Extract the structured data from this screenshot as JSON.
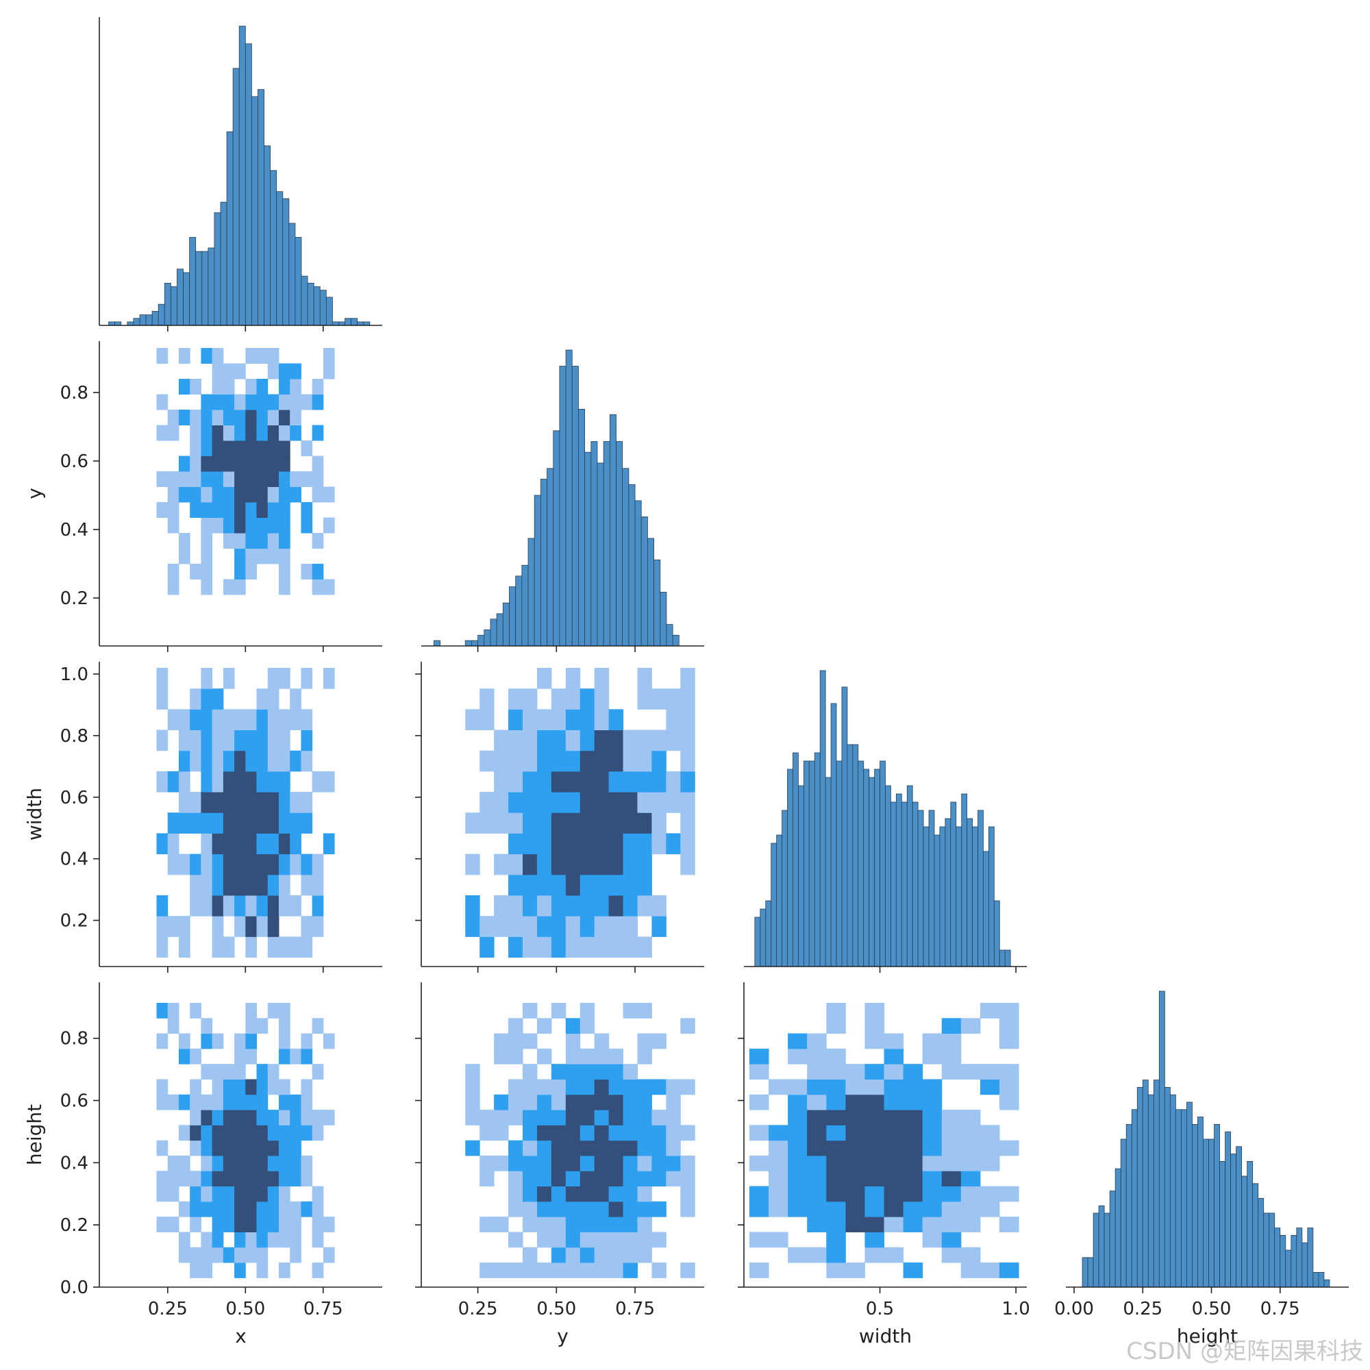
{
  "chart_data": {
    "type": "pairplot",
    "variables": [
      "x",
      "y",
      "width",
      "height"
    ],
    "colors": {
      "bar_fill": "#4a8fc7",
      "bar_edge": "#2c3e50",
      "heat_low": "#9ec5f2",
      "heat_mid": "#2fa0f0",
      "heat_high": "#34507a"
    },
    "panels": [
      {
        "id": "hist-x",
        "row": 0,
        "col": 0,
        "type": "histogram",
        "variable": "x",
        "xlim": [
          0.03,
          0.94
        ],
        "bins": [
          0.07,
          0.09,
          0.11,
          0.13,
          0.15,
          0.17,
          0.19,
          0.21,
          0.23,
          0.25,
          0.27,
          0.29,
          0.31,
          0.33,
          0.35,
          0.37,
          0.39,
          0.41,
          0.43,
          0.45,
          0.47,
          0.49,
          0.51,
          0.53,
          0.55,
          0.57,
          0.59,
          0.61,
          0.63,
          0.65,
          0.67,
          0.69,
          0.71,
          0.73,
          0.75,
          0.77,
          0.79,
          0.81,
          0.83,
          0.85,
          0.87,
          0.89,
          0.91
        ],
        "counts": [
          1,
          1,
          0,
          1,
          2,
          3,
          3,
          4,
          6,
          12,
          11,
          16,
          15,
          25,
          21,
          21,
          22,
          32,
          35,
          55,
          73,
          85,
          80,
          65,
          67,
          51,
          44,
          38,
          36,
          29,
          25,
          14,
          12,
          11,
          10,
          8,
          1,
          1,
          2,
          2,
          1,
          1,
          0
        ]
      },
      {
        "id": "hist-y",
        "row": 1,
        "col": 1,
        "type": "histogram",
        "variable": "y",
        "xlim": [
          0.07,
          0.97
        ],
        "bins": [
          0.12,
          0.14,
          0.16,
          0.18,
          0.2,
          0.22,
          0.24,
          0.26,
          0.28,
          0.3,
          0.32,
          0.34,
          0.36,
          0.38,
          0.4,
          0.42,
          0.44,
          0.46,
          0.48,
          0.5,
          0.52,
          0.54,
          0.56,
          0.58,
          0.6,
          0.62,
          0.64,
          0.66,
          0.68,
          0.7,
          0.72,
          0.74,
          0.76,
          0.78,
          0.8,
          0.82,
          0.84,
          0.86,
          0.88,
          0.9
        ],
        "counts": [
          1,
          0,
          0,
          0,
          0,
          1,
          1,
          2,
          3,
          5,
          6,
          8,
          11,
          13,
          15,
          20,
          28,
          31,
          33,
          40,
          52,
          55,
          52,
          44,
          36,
          38,
          34,
          38,
          43,
          38,
          33,
          30,
          27,
          24,
          20,
          16,
          10,
          4,
          2,
          0
        ]
      },
      {
        "id": "hist-width",
        "row": 2,
        "col": 2,
        "type": "histogram",
        "variable": "width",
        "xlim": [
          0.0,
          1.04
        ],
        "bins": [
          0.05,
          0.07,
          0.09,
          0.11,
          0.13,
          0.15,
          0.17,
          0.19,
          0.21,
          0.23,
          0.25,
          0.27,
          0.29,
          0.31,
          0.33,
          0.35,
          0.37,
          0.39,
          0.41,
          0.43,
          0.45,
          0.47,
          0.49,
          0.51,
          0.53,
          0.55,
          0.57,
          0.59,
          0.61,
          0.63,
          0.65,
          0.67,
          0.69,
          0.71,
          0.73,
          0.75,
          0.77,
          0.79,
          0.81,
          0.83,
          0.85,
          0.87,
          0.89,
          0.91,
          0.93,
          0.95,
          0.97
        ],
        "counts": [
          6,
          7,
          8,
          15,
          16,
          19,
          24,
          26,
          22,
          25,
          25,
          26,
          36,
          23,
          32,
          25,
          34,
          27,
          27,
          25,
          24,
          23,
          24,
          25,
          22,
          20,
          21,
          20,
          22,
          20,
          19,
          17,
          19,
          16,
          17,
          18,
          20,
          17,
          21,
          18,
          17,
          19,
          14,
          17,
          8,
          2,
          2
        ]
      },
      {
        "id": "hist-height",
        "row": 3,
        "col": 3,
        "type": "histogram",
        "variable": "height",
        "xlim": [
          -0.03,
          1.0
        ],
        "bins": [
          0.04,
          0.06,
          0.08,
          0.1,
          0.12,
          0.14,
          0.16,
          0.18,
          0.2,
          0.22,
          0.24,
          0.26,
          0.28,
          0.3,
          0.32,
          0.34,
          0.36,
          0.38,
          0.4,
          0.42,
          0.44,
          0.46,
          0.48,
          0.5,
          0.52,
          0.54,
          0.56,
          0.58,
          0.6,
          0.62,
          0.64,
          0.66,
          0.68,
          0.7,
          0.72,
          0.74,
          0.76,
          0.78,
          0.8,
          0.82,
          0.84,
          0.86,
          0.88,
          0.9,
          0.92
        ],
        "counts": [
          4,
          4,
          10,
          11,
          10,
          13,
          16,
          20,
          22,
          24,
          27,
          28,
          26,
          28,
          40,
          27,
          26,
          24,
          24,
          25,
          22,
          23,
          20,
          20,
          22,
          17,
          21,
          18,
          19,
          15,
          17,
          14,
          12,
          10,
          10,
          8,
          7,
          5,
          7,
          8,
          6,
          8,
          2,
          2,
          1
        ]
      },
      {
        "id": "heat-x-y",
        "row": 1,
        "col": 0,
        "type": "heatmap",
        "xvar": "x",
        "yvar": "y",
        "xlim": [
          0.03,
          0.94
        ],
        "ylim": [
          0.06,
          0.95
        ],
        "intensity": "estimated"
      },
      {
        "id": "heat-x-width",
        "row": 2,
        "col": 0,
        "type": "heatmap",
        "xvar": "x",
        "yvar": "width",
        "xlim": [
          0.03,
          0.94
        ],
        "ylim": [
          0.05,
          1.04
        ],
        "intensity": "estimated"
      },
      {
        "id": "heat-y-width",
        "row": 2,
        "col": 1,
        "type": "heatmap",
        "xvar": "y",
        "yvar": "width",
        "xlim": [
          0.07,
          0.97
        ],
        "ylim": [
          0.05,
          1.04
        ],
        "intensity": "estimated"
      },
      {
        "id": "heat-x-height",
        "row": 3,
        "col": 0,
        "type": "heatmap",
        "xvar": "x",
        "yvar": "height",
        "xlim": [
          0.03,
          0.94
        ],
        "ylim": [
          0.0,
          0.98
        ],
        "intensity": "estimated"
      },
      {
        "id": "heat-y-height",
        "row": 3,
        "col": 1,
        "type": "heatmap",
        "xvar": "y",
        "yvar": "height",
        "xlim": [
          0.07,
          0.97
        ],
        "ylim": [
          0.0,
          0.98
        ],
        "intensity": "estimated"
      },
      {
        "id": "heat-width-height",
        "row": 3,
        "col": 2,
        "type": "heatmap",
        "xvar": "width",
        "yvar": "height",
        "xlim": [
          0.0,
          1.04
        ],
        "ylim": [
          0.0,
          0.98
        ],
        "intensity": "estimated"
      }
    ],
    "axis_labels": {
      "x_bottom": [
        "x",
        "y",
        "width",
        "height"
      ],
      "y_left": [
        "",
        "y",
        "width",
        "height"
      ]
    },
    "ticks": {
      "x": {
        "values": [
          0.25,
          0.5,
          0.75
        ],
        "labels": [
          "0.25",
          "0.50",
          "0.75"
        ]
      },
      "y": {
        "values": [
          0.25,
          0.5,
          0.75
        ],
        "labels": [
          "0.25",
          "0.50",
          "0.75"
        ]
      },
      "width": {
        "values": [
          0.5,
          1.0
        ],
        "labels": [
          "0.5",
          "1.0"
        ]
      },
      "height": {
        "values": [
          0.0,
          0.25,
          0.5,
          0.75
        ],
        "labels": [
          "0.00",
          "0.25",
          "0.50",
          "0.75"
        ]
      },
      "y_axis_rows": {
        "y": {
          "values": [
            0.2,
            0.4,
            0.6,
            0.8
          ],
          "labels": [
            "0.2",
            "0.4",
            "0.6",
            "0.8"
          ]
        },
        "width": {
          "values": [
            0.2,
            0.4,
            0.6,
            0.8,
            1.0
          ],
          "labels": [
            "0.2",
            "0.4",
            "0.6",
            "0.8",
            "1.0"
          ]
        },
        "height": {
          "values": [
            0.0,
            0.2,
            0.4,
            0.6,
            0.8
          ],
          "labels": [
            "0.0",
            "0.2",
            "0.4",
            "0.6",
            "0.8"
          ]
        }
      }
    },
    "watermark": "CSDN @矩阵因果科技"
  }
}
